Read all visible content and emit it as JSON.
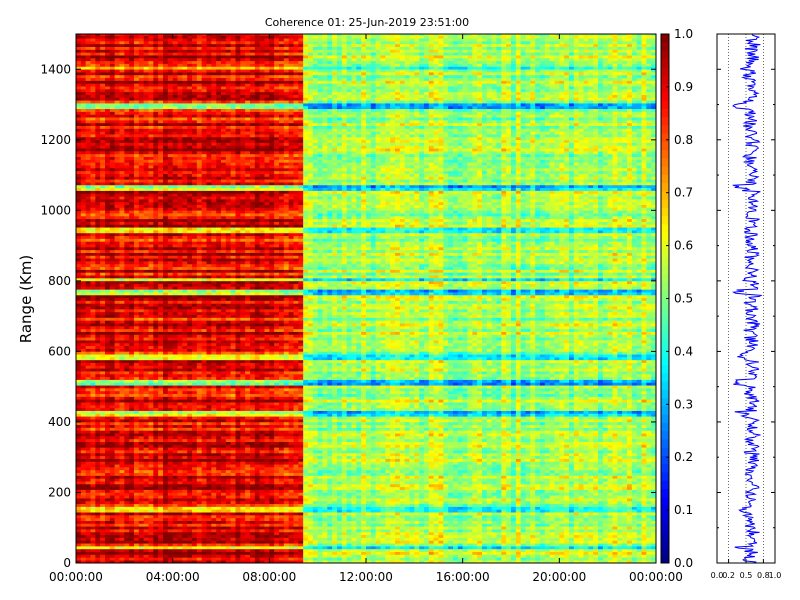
{
  "chart_data": [
    {
      "type": "heatmap",
      "title": "Coherence 01: 25-Jun-2019 23:51:00",
      "xlabel": "",
      "ylabel": "Range (Km)",
      "x_tick_labels": [
        "00:00:00",
        "04:00:00",
        "08:00:00",
        "12:00:00",
        "16:00:00",
        "20:00:00",
        "00:00:00"
      ],
      "x_ticks_hours": [
        0,
        4,
        8,
        12,
        16,
        20,
        24
      ],
      "y_ticks": [
        0,
        200,
        400,
        600,
        800,
        1000,
        1200,
        1400
      ],
      "xlim_hours": [
        0,
        24
      ],
      "ylim": [
        0,
        1500
      ],
      "colormap": "jet",
      "vmin": 0.0,
      "vmax": 1.0,
      "regions": [
        {
          "label": "00:00-09:24",
          "x_hours": [
            0,
            9.4
          ],
          "typical_value": 0.9
        },
        {
          "label": "09:24-24:00",
          "x_hours": [
            9.4,
            24
          ],
          "typical_value": 0.55
        }
      ],
      "low_coherence_ranges_km": [
        40,
        150,
        420,
        505,
        580,
        765,
        800,
        940,
        1060,
        1290,
        1400
      ]
    },
    {
      "type": "table",
      "name": "colorbar",
      "ticks": [
        "0.0",
        "0.1",
        "0.2",
        "0.3",
        "0.4",
        "0.5",
        "0.6",
        "0.7",
        "0.8",
        "0.9",
        "1.0"
      ]
    },
    {
      "type": "line",
      "name": "range-profile",
      "x_tick_labels": [
        "0.0",
        "0.2",
        "0.5",
        "0.8",
        "1.0"
      ],
      "x_ticks": [
        0.0,
        0.2,
        0.5,
        0.8,
        1.0
      ],
      "xlim": [
        0,
        1
      ],
      "ylim": [
        0,
        1500
      ],
      "color": "#0000ff"
    }
  ]
}
